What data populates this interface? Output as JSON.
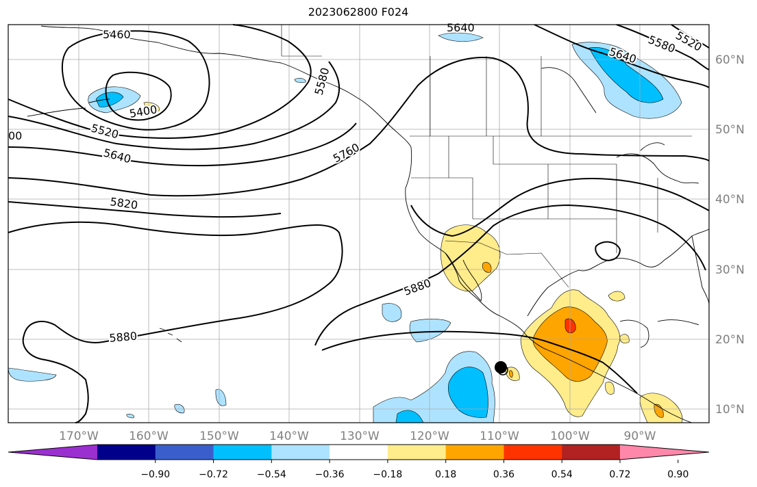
{
  "title": "2023062800 F024",
  "lon_labels": [
    "170°W",
    "160°W",
    "150°W",
    "140°W",
    "130°W",
    "120°W",
    "110°W",
    "100°W",
    "90°W"
  ],
  "lat_labels": [
    "60°N",
    "50°N",
    "40°N",
    "30°N",
    "20°N",
    "10°N"
  ],
  "colorbar": {
    "colors": [
      "#9b30d0",
      "#00008b",
      "#3a5fcd",
      "#00bfff",
      "#aee3ff",
      "#ffffff",
      "#ffec8b",
      "#ffa500",
      "#ff3300",
      "#b22222",
      "#ff88aa"
    ],
    "tick_labels": [
      "−0.90",
      "−0.72",
      "−0.54",
      "−0.36",
      "−0.18",
      "0.18",
      "0.36",
      "0.54",
      "0.72",
      "0.90"
    ]
  },
  "contour_labels": [
    "5460",
    "5400",
    "5520",
    "5640",
    "5820",
    "5880",
    "5760",
    "5880",
    "5640",
    "5580",
    "5520",
    "5640",
    "5580",
    "00"
  ],
  "label_color": "#808080"
}
